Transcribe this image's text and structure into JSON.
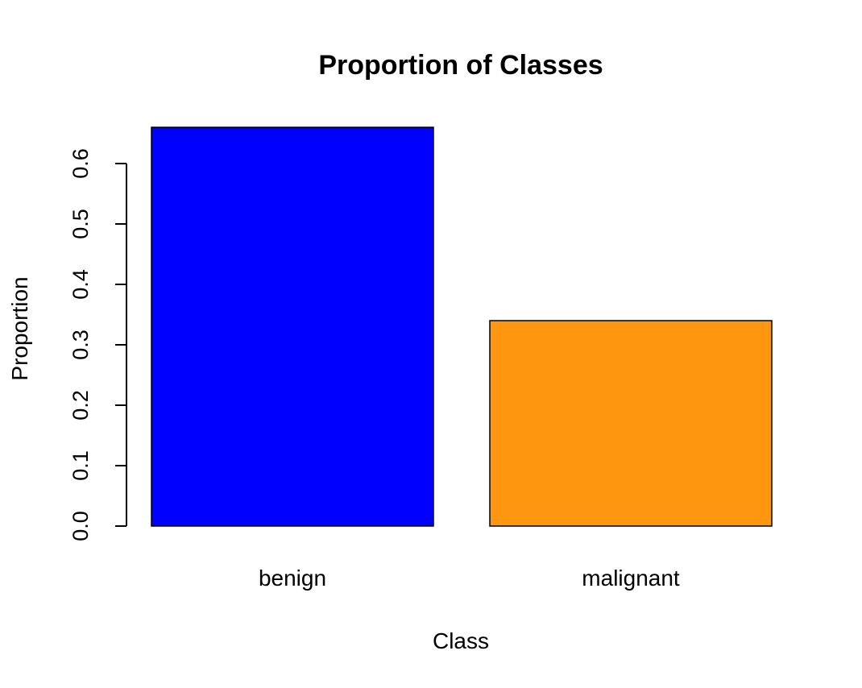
{
  "chart_data": {
    "type": "bar",
    "title": "Proportion of Classes",
    "xlabel": "Class",
    "ylabel": "Proportion",
    "categories": [
      "benign",
      "malignant"
    ],
    "values": [
      0.66,
      0.34
    ],
    "bar_colors": [
      "#0000ff",
      "#ff9610"
    ],
    "ylim": [
      0,
      0.66
    ],
    "yticks": [
      0.0,
      0.1,
      0.2,
      0.3,
      0.4,
      0.5,
      0.6
    ],
    "ytick_labels": [
      "0.0",
      "0.1",
      "0.2",
      "0.3",
      "0.4",
      "0.5",
      "0.6"
    ],
    "grid": false,
    "legend": "none"
  }
}
